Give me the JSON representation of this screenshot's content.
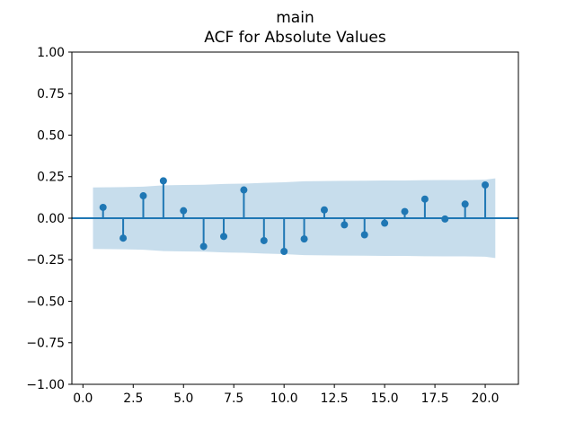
{
  "chart_data": {
    "type": "stem",
    "title_line1": "main",
    "title_line2": "ACF for Absolute Values",
    "xlabel": "",
    "ylabel": "",
    "x": [
      1,
      2,
      3,
      4,
      5,
      6,
      7,
      8,
      9,
      10,
      11,
      12,
      13,
      14,
      15,
      16,
      17,
      18,
      19,
      20
    ],
    "values": [
      0.065,
      -0.12,
      0.135,
      0.225,
      0.045,
      -0.17,
      -0.11,
      0.17,
      -0.135,
      -0.2,
      -0.125,
      0.05,
      -0.04,
      -0.1,
      -0.03,
      0.04,
      0.115,
      -0.005,
      0.085,
      0.2
    ],
    "confidence_band": {
      "x": [
        0.5,
        1,
        2,
        3,
        4,
        5,
        6,
        7,
        8,
        9,
        10,
        11,
        12,
        13,
        14,
        15,
        16,
        17,
        18,
        19,
        20,
        20.5
      ],
      "half_width": [
        0.185,
        0.186,
        0.187,
        0.19,
        0.198,
        0.2,
        0.201,
        0.206,
        0.208,
        0.213,
        0.216,
        0.222,
        0.224,
        0.225,
        0.226,
        0.227,
        0.227,
        0.229,
        0.23,
        0.23,
        0.232,
        0.24
      ]
    },
    "xlim": [
      -0.55,
      21.65
    ],
    "ylim": [
      -1.0,
      1.0
    ],
    "xticks": [
      0,
      2.5,
      5,
      7.5,
      10,
      12.5,
      15,
      17.5,
      20
    ],
    "xtick_labels": [
      "0.0",
      "2.5",
      "5.0",
      "7.5",
      "10.0",
      "12.5",
      "15.0",
      "17.5",
      "20.0"
    ],
    "yticks": [
      1,
      0.75,
      0.5,
      0.25,
      0,
      -0.25,
      -0.5,
      -0.75,
      -1
    ],
    "ytick_labels": [
      "1.00",
      "0.75",
      "0.50",
      "0.25",
      "0.00",
      "−0.25",
      "−0.50",
      "−0.75",
      "−1.00"
    ],
    "grid": false,
    "legend": null,
    "colors": {
      "stem": "#1f77b4",
      "marker": "#1f77b4",
      "zero_line": "#1f77b4",
      "band_fill": "#1f77b4",
      "band_alpha": 0.25,
      "spine": "#000000",
      "text": "#000000",
      "background": "#ffffff"
    }
  }
}
